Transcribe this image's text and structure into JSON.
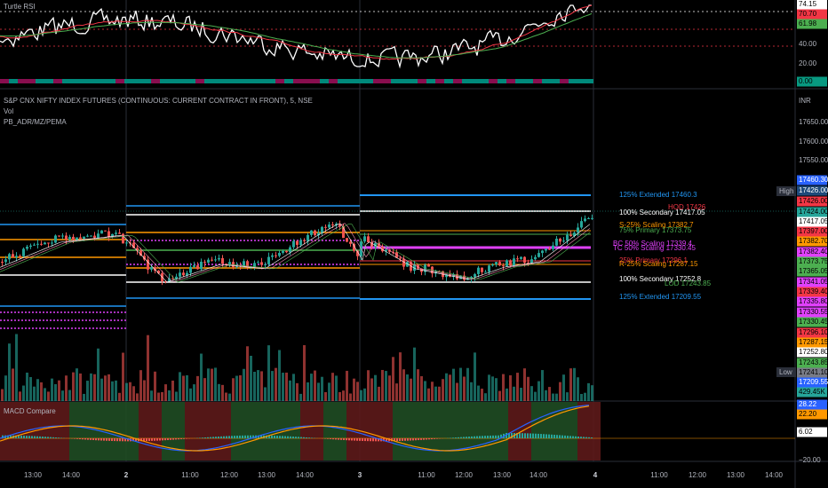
{
  "rsi_pane": {
    "title": "Turtle RSI",
    "axis": [
      "40.00",
      "20.00"
    ],
    "tags": [
      {
        "text": "74.15",
        "color": "#ffffff"
      },
      {
        "text": "70.70",
        "color": "#f23645"
      },
      {
        "text": "61.98",
        "color": "#4caf50"
      },
      {
        "text": "0.00",
        "color": "#089981"
      }
    ]
  },
  "main_pane": {
    "title": "S&P CNX NIFTY INDEX FUTURES (CONTINUOUS: CURRENT CONTRACT IN FRONT), 5, NSE",
    "indicators": [
      "Vol",
      "PB_ADR/MZ/PEMA"
    ],
    "currency": "INR",
    "axis": [
      "17650.00",
      "17600.00",
      "17550.00"
    ],
    "side_labels": [
      "High",
      "Low"
    ],
    "tags": [
      {
        "text": "17460.30",
        "color": "#2962ff"
      },
      {
        "text": "17426.00",
        "color": "#1e4a7a"
      },
      {
        "text": "17426.00",
        "color": "#f23645"
      },
      {
        "text": "17424.00",
        "color": "#26a69a"
      },
      {
        "text": "17417.05",
        "color": "#ffffff"
      },
      {
        "text": "17397.00",
        "color": "#f23645"
      },
      {
        "text": "17382.70",
        "color": "#ff9800"
      },
      {
        "text": "17382.40",
        "color": "#e040fb"
      },
      {
        "text": "17373.75",
        "color": "#4caf50"
      },
      {
        "text": "17365.05",
        "color": "#4caf50"
      },
      {
        "text": "17341.05",
        "color": "#e040fb"
      },
      {
        "text": "17339.40",
        "color": "#f23645"
      },
      {
        "text": "17335.80",
        "color": "#e040fb"
      },
      {
        "text": "17330.55",
        "color": "#e040fb"
      },
      {
        "text": "17330.45",
        "color": "#4caf50"
      },
      {
        "text": "17296.10",
        "color": "#f23645"
      },
      {
        "text": "17287.15",
        "color": "#ff9800"
      },
      {
        "text": "17252.80",
        "color": "#ffffff"
      },
      {
        "text": "17243.85",
        "color": "#4caf50"
      },
      {
        "text": "17241.10",
        "color": "#787b86"
      },
      {
        "text": "17209.55",
        "color": "#2962ff"
      },
      {
        "text": "429.45K",
        "color": "#26a69a"
      }
    ],
    "levels": [
      {
        "text": "125% Extended 17460.3",
        "color": "#2196f3"
      },
      {
        "text": "HOD 17426",
        "color": "#f23645"
      },
      {
        "text": "100% Secondary 17417.05",
        "color": "#ffffff"
      },
      {
        "text": "S-25% Scaling 17382.7",
        "color": "#ff9800"
      },
      {
        "text": "75% Primary 17373.75",
        "color": "#4caf50"
      },
      {
        "text": "BC 50% Scaling 17339.4",
        "color": "#e040fb"
      },
      {
        "text": "TC 50% Scaling 17330.45",
        "color": "#e040fb"
      },
      {
        "text": "25% Primary 17296.1",
        "color": "#f23645"
      },
      {
        "text": "R-25% Scaling 17287.15",
        "color": "#ff9800"
      },
      {
        "text": "100% Secondary 17252.8",
        "color": "#ffffff"
      },
      {
        "text": "LOD 17243.85",
        "color": "#4caf50"
      },
      {
        "text": "125% Extended 17209.55",
        "color": "#2196f3"
      }
    ]
  },
  "macd_pane": {
    "title": "MACD Compare",
    "axis": [
      "−20.00"
    ],
    "tags": [
      {
        "text": "28.22",
        "color": "#2962ff"
      },
      {
        "text": "22.20",
        "color": "#ff9800"
      },
      {
        "text": "6.02",
        "color": "#ffffff"
      }
    ]
  },
  "time_axis": [
    "13:00",
    "14:00",
    "2",
    "11:00",
    "12:00",
    "13:00",
    "14:00",
    "3",
    "11:00",
    "12:00",
    "13:00",
    "14:00",
    "4",
    "11:00",
    "12:00",
    "13:00",
    "14:00"
  ]
}
